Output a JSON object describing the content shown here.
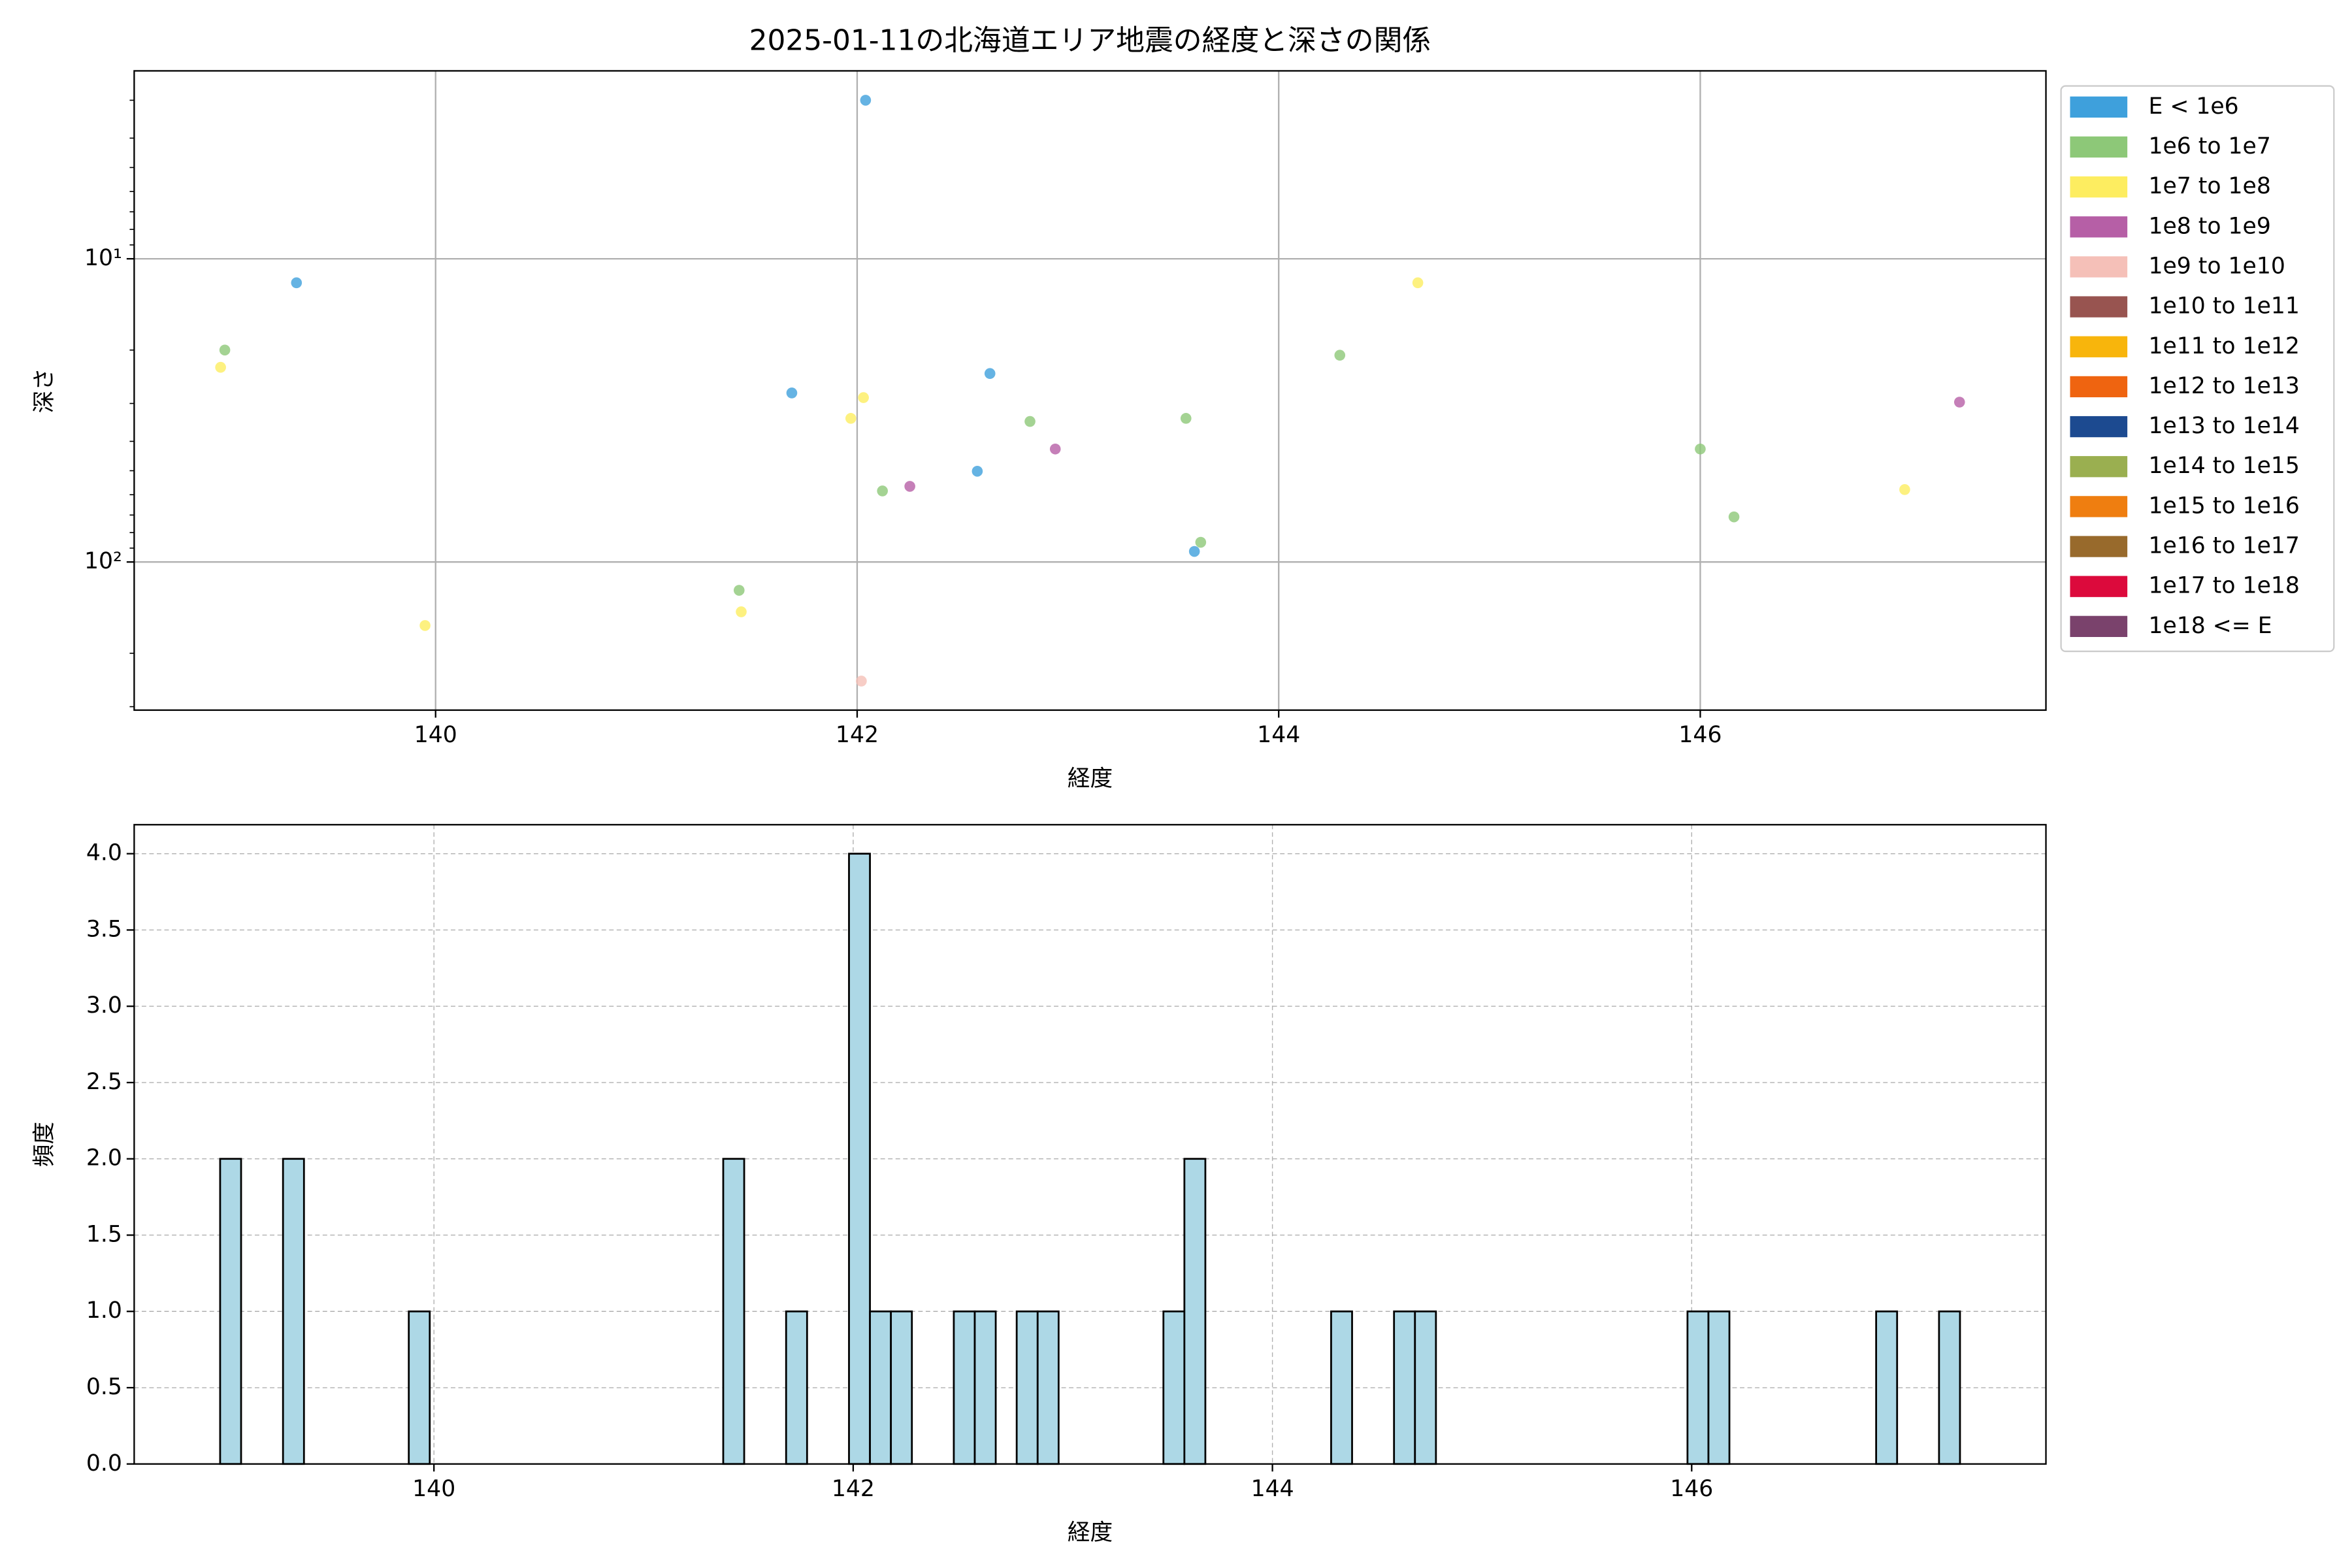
{
  "chart_data": [
    {
      "type": "scatter",
      "title": "2025-01-11の北海道エリア地震の経度と深さの関係",
      "x_label": "経度",
      "y_label": "深さ",
      "xlim": [
        138.57,
        147.64
      ],
      "xticks": [
        140,
        142,
        144,
        146
      ],
      "ylim": [
        2.4,
        308
      ],
      "yscale": "log",
      "y_inverted": true,
      "yticks": [
        {
          "value": 10,
          "label": "10¹"
        },
        {
          "value": 100,
          "label": "10²"
        }
      ],
      "yminorticks": [
        3,
        4,
        5,
        6,
        7,
        8,
        9,
        20,
        30,
        40,
        50,
        60,
        70,
        80,
        90,
        200,
        300
      ],
      "grid": true,
      "legend": "outside upper right",
      "series": [
        {
          "name": "E < 1e6",
          "color": "#3ea0dc",
          "x": [
            139.34,
            142.04,
            141.69,
            142.63,
            142.57,
            143.6
          ],
          "values": [
            12,
            3,
            27.7,
            23.9,
            50.2,
            92.3
          ]
        },
        {
          "name": "1e6 to 1e7",
          "color": "#8dc878",
          "x": [
            139.0,
            142.12,
            141.44,
            142.82,
            143.56,
            143.63,
            144.29,
            146.0,
            146.16
          ],
          "values": [
            20,
            58.3,
            124,
            34.4,
            33.6,
            86.1,
            20.8,
            42.4,
            71
          ]
        },
        {
          "name": "1e7 to 1e8",
          "color": "#fded60",
          "x": [
            138.98,
            139.95,
            142.03,
            141.97,
            141.45,
            144.66,
            146.97
          ],
          "values": [
            22.8,
            162,
            28.7,
            33.6,
            146,
            12,
            57.7
          ]
        },
        {
          "name": "1e8 to 1e9",
          "color": "#b65fa6",
          "x": [
            142.25,
            142.94,
            147.23
          ],
          "values": [
            56.3,
            42.4,
            29.7
          ]
        },
        {
          "name": "1e9 to 1e10",
          "color": "#f5c0b8",
          "x": [
            142.02
          ],
          "values": [
            247
          ]
        },
        {
          "name": "1e10 to 1e11",
          "color": "#985450",
          "x": [],
          "values": []
        },
        {
          "name": "1e11 to 1e12",
          "color": "#f8b50c",
          "x": [],
          "values": []
        },
        {
          "name": "1e12 to 1e13",
          "color": "#ef6410",
          "x": [],
          "values": []
        },
        {
          "name": "1e13 to 1e14",
          "color": "#1c4a90",
          "x": [],
          "values": []
        },
        {
          "name": "1e14 to 1e15",
          "color": "#9aaf50",
          "x": [],
          "values": []
        },
        {
          "name": "1e15 to 1e16",
          "color": "#ef7e10",
          "x": [],
          "values": []
        },
        {
          "name": "1e16 to 1e17",
          "color": "#986a2c",
          "x": [],
          "values": []
        },
        {
          "name": "1e17 to 1e18",
          "color": "#dc0a3c",
          "x": [],
          "values": []
        },
        {
          "name": "1e18 <= E",
          "color": "#7a426c",
          "x": [],
          "values": []
        }
      ]
    },
    {
      "type": "histogram",
      "x_label": "経度",
      "y_label": "頻度",
      "xlim": [
        138.57,
        147.69
      ],
      "xticks": [
        140,
        142,
        144,
        146
      ],
      "ylim": [
        0,
        4.19
      ],
      "yticks": [
        {
          "value": 0,
          "label": "0.0"
        },
        {
          "value": 0.5,
          "label": "0.5"
        },
        {
          "value": 1,
          "label": "1.0"
        },
        {
          "value": 1.5,
          "label": "1.5"
        },
        {
          "value": 2,
          "label": "2.0"
        },
        {
          "value": 2.5,
          "label": "2.5"
        },
        {
          "value": 3,
          "label": "3.0"
        },
        {
          "value": 3.5,
          "label": "3.5"
        },
        {
          "value": 4,
          "label": "4.0"
        }
      ],
      "grid": true,
      "grid_style": "dashed",
      "color": "#add8e6",
      "edgecolor": "#000000",
      "bins": [
        138.98,
        139.08,
        139.18,
        139.28,
        139.38,
        139.48,
        139.58,
        139.68,
        139.78,
        139.88,
        139.98,
        140.08,
        140.18,
        140.28,
        140.38,
        140.48,
        140.58,
        140.68,
        140.78,
        140.88,
        140.98,
        141.08,
        141.18,
        141.28,
        141.38,
        141.48,
        141.58,
        141.68,
        141.78,
        141.88,
        141.98,
        142.08,
        142.18,
        142.28,
        142.38,
        142.48,
        142.58,
        142.68,
        142.78,
        142.88,
        142.98,
        143.08,
        143.18,
        143.28,
        143.38,
        143.48,
        143.58,
        143.68,
        143.78,
        143.88,
        143.98,
        144.08,
        144.18,
        144.28,
        144.38,
        144.48,
        144.58,
        144.68,
        144.78,
        144.88,
        144.98,
        145.08,
        145.18,
        145.28,
        145.38,
        145.48,
        145.58,
        145.68,
        145.78,
        145.88,
        145.98,
        146.08,
        146.18,
        146.28,
        146.38,
        146.48,
        146.58,
        146.68,
        146.78,
        146.88,
        146.98,
        147.08,
        147.18,
        147.28
      ],
      "counts": [
        2,
        0,
        0,
        2,
        0,
        0,
        0,
        0,
        0,
        1,
        0,
        0,
        0,
        0,
        0,
        0,
        0,
        0,
        0,
        0,
        0,
        0,
        0,
        0,
        2,
        0,
        0,
        1,
        0,
        0,
        4,
        1,
        1,
        0,
        0,
        1,
        1,
        0,
        1,
        1,
        0,
        0,
        0,
        0,
        0,
        1,
        2,
        0,
        0,
        0,
        0,
        0,
        0,
        1,
        0,
        0,
        1,
        1,
        0,
        0,
        0,
        0,
        0,
        0,
        0,
        0,
        0,
        0,
        0,
        0,
        1,
        1,
        0,
        0,
        0,
        0,
        0,
        0,
        0,
        1,
        0,
        0,
        1
      ]
    }
  ]
}
